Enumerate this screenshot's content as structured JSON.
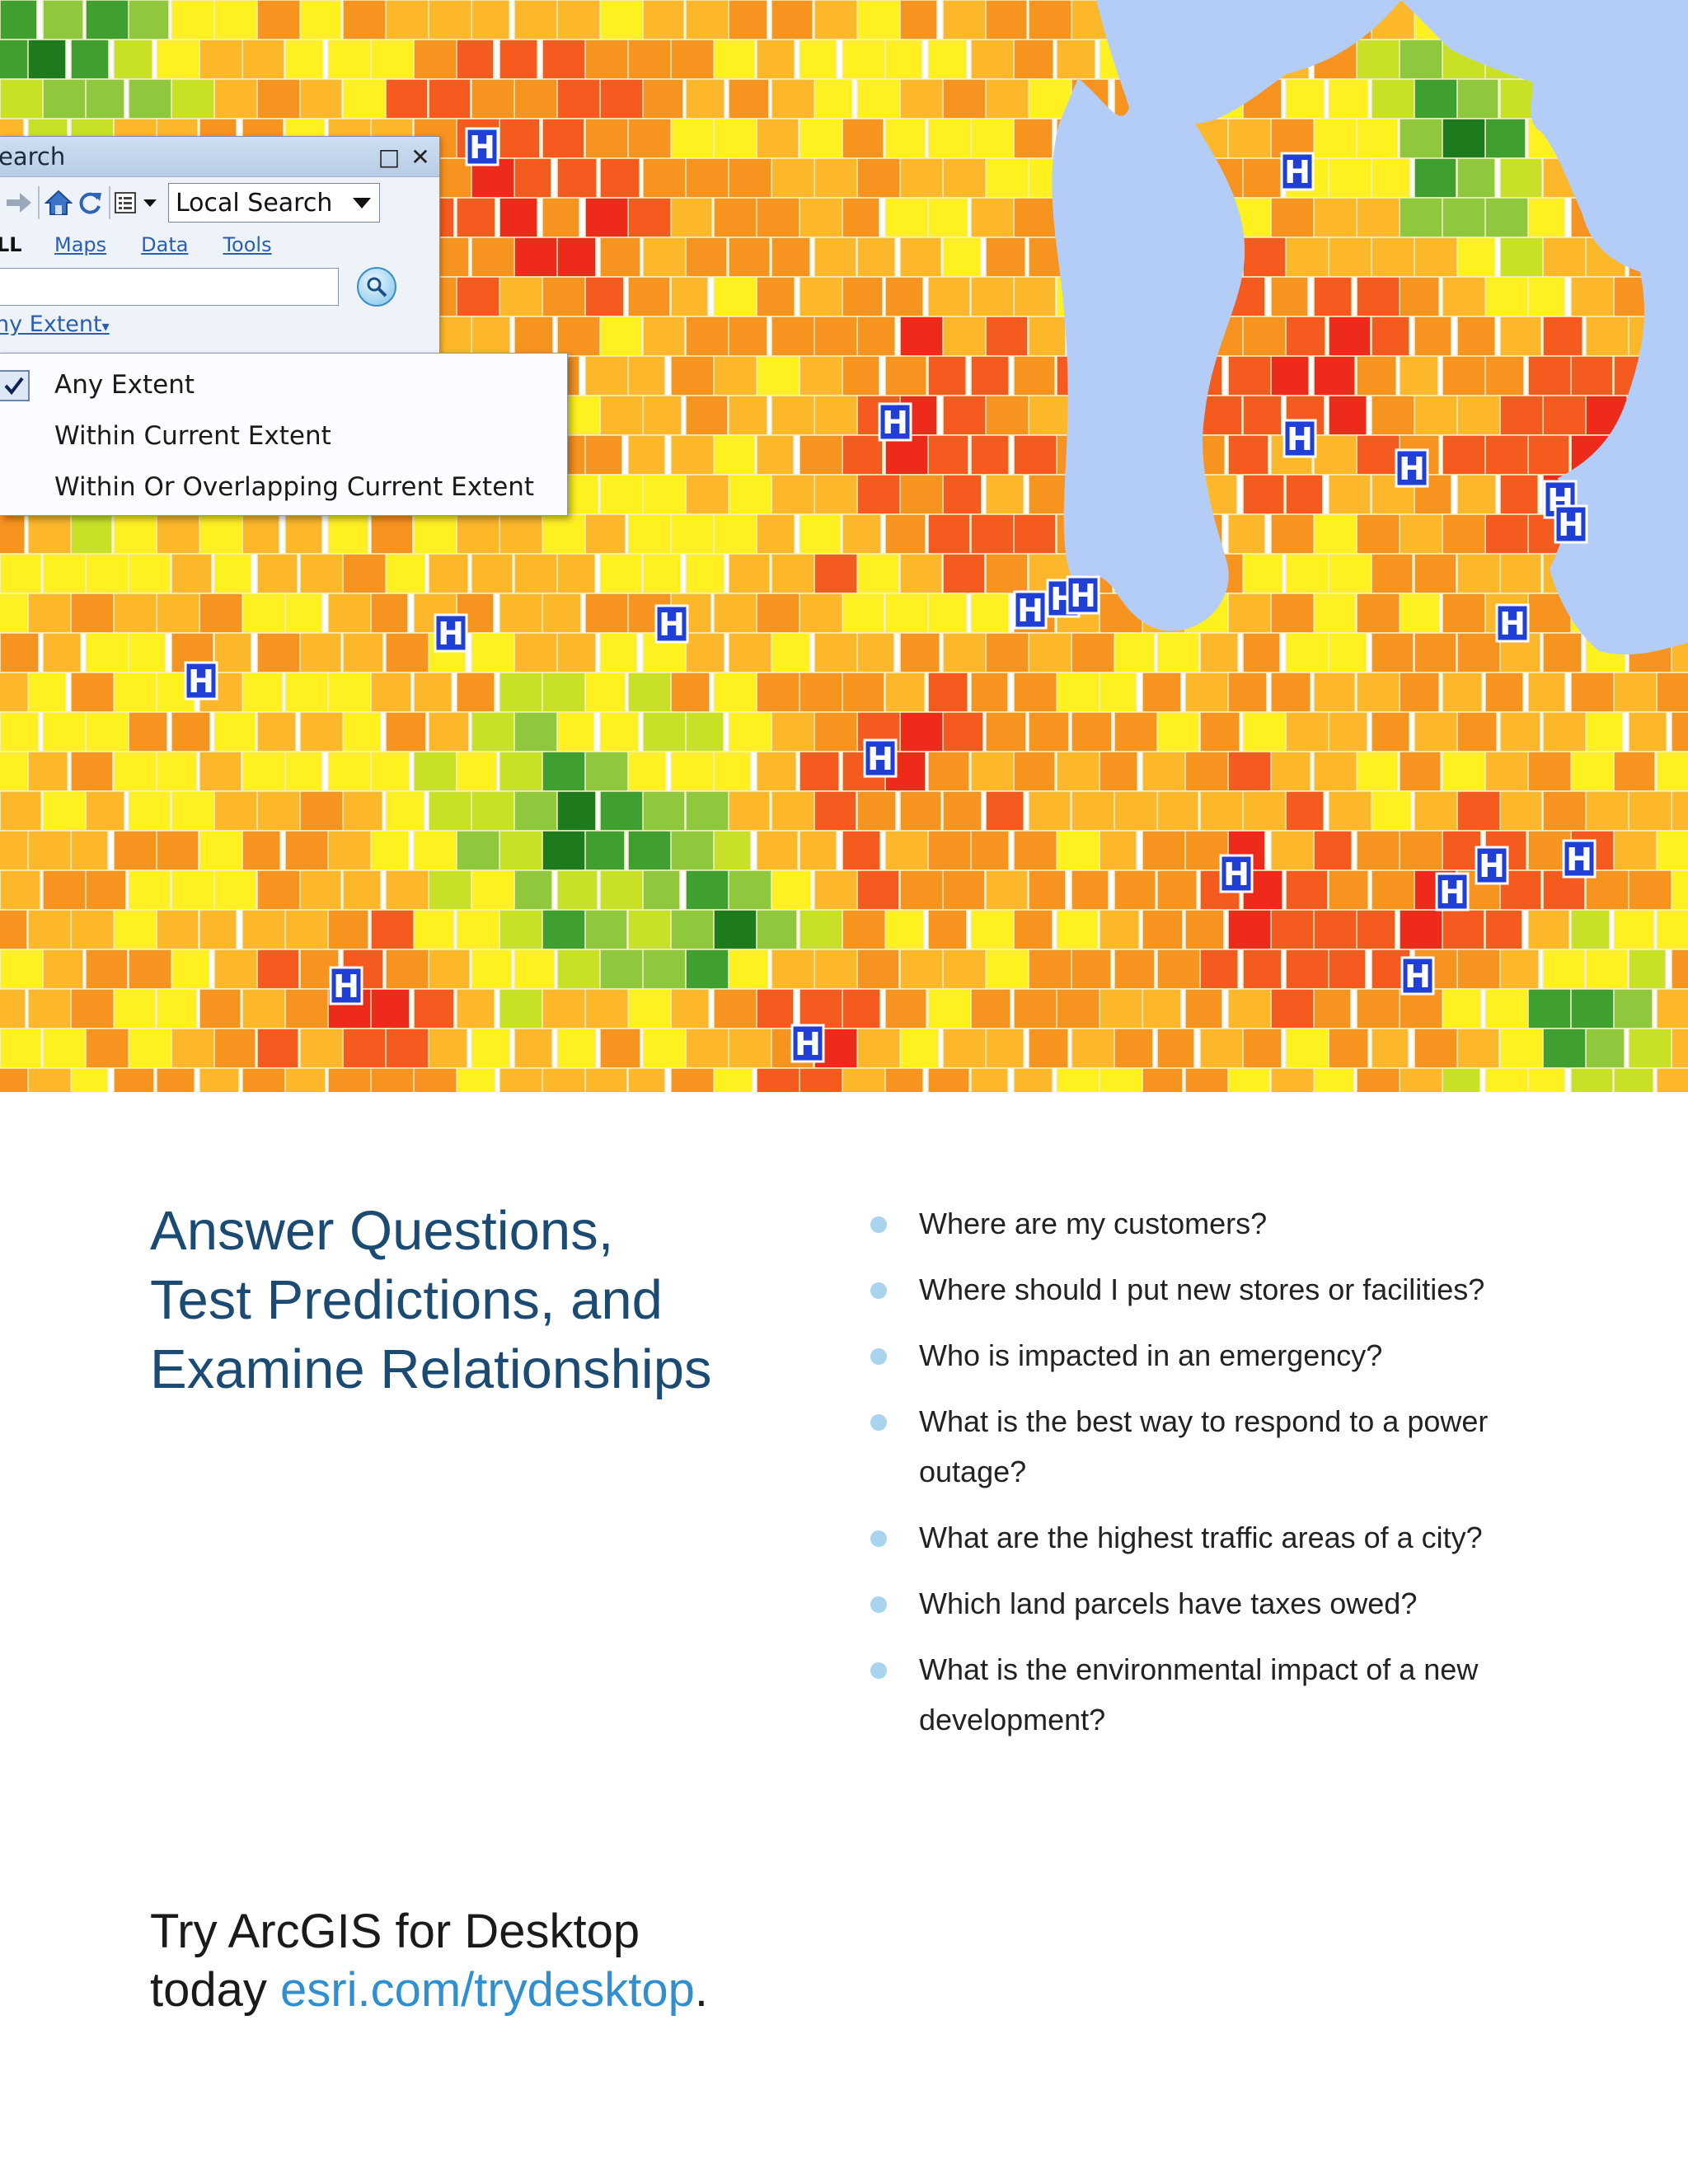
{
  "map": {
    "palette": {
      "water": "#b4cdf7",
      "red": "#ee2a1a",
      "orange_red": "#f55a1e",
      "orange": "#f7931f",
      "light_orange": "#fcb72a",
      "yellow": "#fff01f",
      "yellow_green": "#c8e127",
      "light_green": "#8fc83c",
      "green": "#3f9f2f",
      "dark_green": "#1d7a1d",
      "hospital_marker_bg": "#1f3fd6",
      "hospital_marker_text": "#ffffff"
    },
    "hospital_marker_label": "H"
  },
  "search_window": {
    "title": "earch",
    "maximize_icon": "maximize-icon",
    "close_icon": "close-icon",
    "scope_select": "Local Search",
    "tabs": {
      "all": "LL",
      "maps": "Maps",
      "data": "Data",
      "tools": "Tools"
    },
    "search_value": "",
    "extent_link": "ny Extent",
    "extent_options": [
      "Any Extent",
      "Within Current Extent",
      "Within Or Overlapping Current Extent"
    ],
    "selected_option": "Any Extent"
  },
  "heading": {
    "line1": "Answer Questions,",
    "line2": "Test Predictions, and",
    "line3": "Examine Relationships"
  },
  "questions": [
    "Where are my customers?",
    "Where should I put new stores or facilities?",
    "Who is impacted in an emergency?",
    "What is the best way to respond to a power outage?",
    "What are the highest traffic areas of a city?",
    "Which land parcels have taxes owed?",
    "What is the environmental impact of a new development?"
  ],
  "cta": {
    "line1": "Try ArcGIS for Desktop",
    "line2_prefix": "today ",
    "link": "esri.com/trydesktop",
    "suffix": "."
  },
  "colors": {
    "heading": "#1b4a72",
    "link": "#2f8fd0",
    "bullet": "#a9d4ee"
  }
}
